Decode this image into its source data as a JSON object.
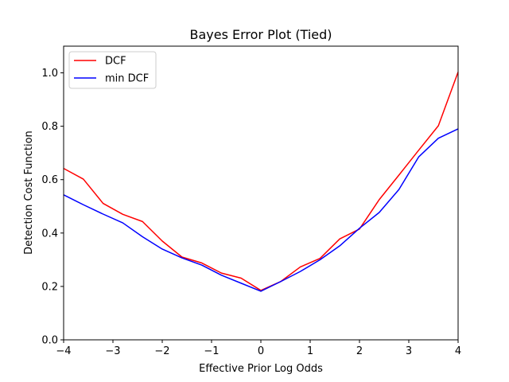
{
  "chart_data": {
    "type": "line",
    "title": "Bayes Error Plot (Tied)",
    "xlabel": "Effective Prior Log Odds",
    "ylabel": "Detection Cost Function",
    "xlim": [
      -4,
      4
    ],
    "ylim": [
      0.0,
      1.1
    ],
    "xticks": [
      -4,
      -3,
      -2,
      -1,
      0,
      1,
      2,
      3,
      4
    ],
    "xtick_labels": [
      "−4",
      "−3",
      "−2",
      "−1",
      "0",
      "1",
      "2",
      "3",
      "4"
    ],
    "yticks": [
      0.0,
      0.2,
      0.4,
      0.6,
      0.8,
      1.0
    ],
    "ytick_labels": [
      "0.0",
      "0.2",
      "0.4",
      "0.6",
      "0.8",
      "1.0"
    ],
    "grid": false,
    "legend_position": "top-left",
    "x": [
      -4.0,
      -3.6,
      -3.2,
      -2.8,
      -2.4,
      -2.0,
      -1.6,
      -1.2,
      -0.8,
      -0.4,
      0.0,
      0.4,
      0.8,
      1.2,
      1.6,
      2.0,
      2.4,
      2.8,
      3.2,
      3.6,
      4.0
    ],
    "series": [
      {
        "name": "DCF",
        "color": "#ff0000",
        "values": [
          0.642,
          0.602,
          0.511,
          0.47,
          0.443,
          0.37,
          0.31,
          0.288,
          0.25,
          0.231,
          0.185,
          0.218,
          0.273,
          0.305,
          0.378,
          0.415,
          0.525,
          0.617,
          0.71,
          0.802,
          1.003
        ]
      },
      {
        "name": "min DCF",
        "color": "#0000ff",
        "values": [
          0.543,
          0.506,
          0.471,
          0.438,
          0.386,
          0.34,
          0.307,
          0.28,
          0.242,
          0.212,
          0.182,
          0.218,
          0.256,
          0.3,
          0.352,
          0.418,
          0.477,
          0.563,
          0.685,
          0.755,
          0.79
        ]
      }
    ]
  }
}
